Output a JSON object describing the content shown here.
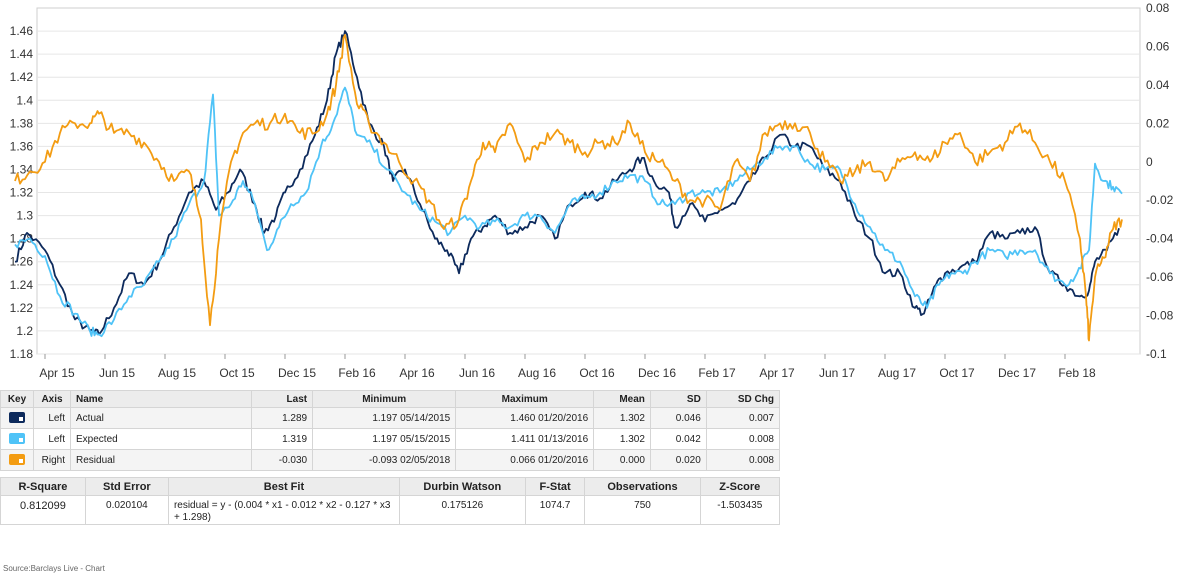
{
  "chart_data": {
    "type": "line",
    "x_ticks": [
      "Apr 15",
      "Jun 15",
      "Aug 15",
      "Oct 15",
      "Dec 15",
      "Feb 16",
      "Apr 16",
      "Jun 16",
      "Aug 16",
      "Oct 16",
      "Dec 16",
      "Feb 17",
      "Apr 17",
      "Jun 17",
      "Aug 17",
      "Oct 17",
      "Dec 17",
      "Feb 18"
    ],
    "y_left": {
      "ylim": [
        1.18,
        1.48
      ],
      "ticks": [
        "1.18",
        "1.2",
        "1.22",
        "1.24",
        "1.26",
        "1.28",
        "1.3",
        "1.32",
        "1.34",
        "1.36",
        "1.38",
        "1.4",
        "1.42",
        "1.44",
        "1.46"
      ]
    },
    "y_right": {
      "ylim": [
        -0.1,
        0.08
      ],
      "ticks": [
        "-0.1",
        "-0.08",
        "-0.06",
        "-0.04",
        "-0.02",
        "0",
        "0.02",
        "0.04",
        "0.06",
        "0.08"
      ]
    },
    "x_start_month": "2015-03",
    "series": [
      {
        "name": "Actual",
        "axis": "left",
        "color": "#0d2a5c",
        "points": [
          [
            0.0,
            1.26
          ],
          [
            0.4,
            1.285
          ],
          [
            1.0,
            1.27
          ],
          [
            1.5,
            1.24
          ],
          [
            2.0,
            1.21
          ],
          [
            2.5,
            1.2
          ],
          [
            2.8,
            1.197
          ],
          [
            3.3,
            1.22
          ],
          [
            3.8,
            1.25
          ],
          [
            4.3,
            1.24
          ],
          [
            4.8,
            1.26
          ],
          [
            5.3,
            1.29
          ],
          [
            5.8,
            1.32
          ],
          [
            6.3,
            1.33
          ],
          [
            6.7,
            1.305
          ],
          [
            7.1,
            1.32
          ],
          [
            7.5,
            1.34
          ],
          [
            8.0,
            1.31
          ],
          [
            8.3,
            1.285
          ],
          [
            8.7,
            1.3
          ],
          [
            9.0,
            1.32
          ],
          [
            9.5,
            1.34
          ],
          [
            10.0,
            1.37
          ],
          [
            10.4,
            1.4
          ],
          [
            10.7,
            1.44
          ],
          [
            11.0,
            1.46
          ],
          [
            11.4,
            1.42
          ],
          [
            11.8,
            1.38
          ],
          [
            12.3,
            1.36
          ],
          [
            12.6,
            1.33
          ],
          [
            13.0,
            1.34
          ],
          [
            13.5,
            1.31
          ],
          [
            14.0,
            1.28
          ],
          [
            14.4,
            1.27
          ],
          [
            14.8,
            1.25
          ],
          [
            15.2,
            1.28
          ],
          [
            15.6,
            1.29
          ],
          [
            16.0,
            1.3
          ],
          [
            16.5,
            1.285
          ],
          [
            17.0,
            1.29
          ],
          [
            17.5,
            1.3
          ],
          [
            18.0,
            1.28
          ],
          [
            18.5,
            1.31
          ],
          [
            19.0,
            1.32
          ],
          [
            19.5,
            1.315
          ],
          [
            20.0,
            1.33
          ],
          [
            20.5,
            1.34
          ],
          [
            20.9,
            1.35
          ],
          [
            21.3,
            1.33
          ],
          [
            21.8,
            1.32
          ],
          [
            22.0,
            1.29
          ],
          [
            22.5,
            1.31
          ],
          [
            23.0,
            1.295
          ],
          [
            23.5,
            1.305
          ],
          [
            24.0,
            1.31
          ],
          [
            24.5,
            1.33
          ],
          [
            25.0,
            1.35
          ],
          [
            25.5,
            1.37
          ],
          [
            26.0,
            1.36
          ],
          [
            26.5,
            1.36
          ],
          [
            27.0,
            1.34
          ],
          [
            27.5,
            1.33
          ],
          [
            28.0,
            1.3
          ],
          [
            28.5,
            1.28
          ],
          [
            29.0,
            1.25
          ],
          [
            29.5,
            1.25
          ],
          [
            30.0,
            1.22
          ],
          [
            30.3,
            1.215
          ],
          [
            30.7,
            1.24
          ],
          [
            31.0,
            1.25
          ],
          [
            31.5,
            1.255
          ],
          [
            32.0,
            1.26
          ],
          [
            32.5,
            1.285
          ],
          [
            33.0,
            1.28
          ],
          [
            33.5,
            1.285
          ],
          [
            34.0,
            1.29
          ],
          [
            34.5,
            1.25
          ],
          [
            35.0,
            1.24
          ],
          [
            35.5,
            1.23
          ],
          [
            35.8,
            1.235
          ],
          [
            36.0,
            1.26
          ],
          [
            36.4,
            1.27
          ],
          [
            36.8,
            1.289
          ]
        ]
      },
      {
        "name": "Expected",
        "axis": "left",
        "color": "#4fc3f7",
        "points": [
          [
            0.0,
            1.275
          ],
          [
            0.5,
            1.28
          ],
          [
            1.0,
            1.265
          ],
          [
            1.5,
            1.23
          ],
          [
            2.0,
            1.215
          ],
          [
            2.5,
            1.2
          ],
          [
            2.8,
            1.197
          ],
          [
            3.3,
            1.21
          ],
          [
            3.8,
            1.23
          ],
          [
            4.3,
            1.24
          ],
          [
            4.8,
            1.26
          ],
          [
            5.3,
            1.28
          ],
          [
            5.8,
            1.31
          ],
          [
            6.3,
            1.33
          ],
          [
            6.6,
            1.405
          ],
          [
            6.8,
            1.3
          ],
          [
            7.2,
            1.31
          ],
          [
            7.6,
            1.33
          ],
          [
            8.0,
            1.31
          ],
          [
            8.4,
            1.27
          ],
          [
            8.8,
            1.29
          ],
          [
            9.2,
            1.31
          ],
          [
            9.7,
            1.32
          ],
          [
            10.2,
            1.36
          ],
          [
            10.6,
            1.38
          ],
          [
            11.0,
            1.411
          ],
          [
            11.4,
            1.37
          ],
          [
            11.9,
            1.36
          ],
          [
            12.4,
            1.34
          ],
          [
            13.0,
            1.32
          ],
          [
            13.5,
            1.305
          ],
          [
            14.0,
            1.295
          ],
          [
            14.5,
            1.285
          ],
          [
            15.0,
            1.3
          ],
          [
            15.5,
            1.29
          ],
          [
            16.0,
            1.295
          ],
          [
            16.5,
            1.29
          ],
          [
            17.0,
            1.3
          ],
          [
            17.5,
            1.3
          ],
          [
            18.0,
            1.285
          ],
          [
            18.5,
            1.31
          ],
          [
            19.0,
            1.315
          ],
          [
            19.5,
            1.32
          ],
          [
            20.0,
            1.33
          ],
          [
            20.5,
            1.335
          ],
          [
            21.0,
            1.33
          ],
          [
            21.5,
            1.31
          ],
          [
            22.0,
            1.31
          ],
          [
            22.5,
            1.32
          ],
          [
            23.0,
            1.32
          ],
          [
            23.5,
            1.32
          ],
          [
            24.0,
            1.33
          ],
          [
            24.5,
            1.34
          ],
          [
            25.0,
            1.35
          ],
          [
            25.5,
            1.36
          ],
          [
            26.0,
            1.36
          ],
          [
            26.5,
            1.345
          ],
          [
            27.0,
            1.34
          ],
          [
            27.5,
            1.34
          ],
          [
            28.0,
            1.31
          ],
          [
            28.5,
            1.29
          ],
          [
            29.0,
            1.27
          ],
          [
            29.5,
            1.26
          ],
          [
            30.0,
            1.23
          ],
          [
            30.4,
            1.22
          ],
          [
            30.8,
            1.24
          ],
          [
            31.2,
            1.25
          ],
          [
            31.6,
            1.25
          ],
          [
            32.0,
            1.26
          ],
          [
            32.5,
            1.27
          ],
          [
            33.0,
            1.265
          ],
          [
            33.5,
            1.27
          ],
          [
            34.0,
            1.27
          ],
          [
            34.5,
            1.25
          ],
          [
            35.0,
            1.24
          ],
          [
            35.4,
            1.25
          ],
          [
            35.8,
            1.27
          ],
          [
            36.0,
            1.345
          ],
          [
            36.3,
            1.33
          ],
          [
            36.6,
            1.325
          ],
          [
            36.9,
            1.319
          ]
        ]
      },
      {
        "name": "Residual",
        "axis": "right",
        "color": "#f39c12",
        "points": [
          [
            0.0,
            -0.01
          ],
          [
            0.5,
            -0.005
          ],
          [
            1.0,
            0.0
          ],
          [
            1.5,
            0.015
          ],
          [
            2.0,
            0.02
          ],
          [
            2.5,
            0.02
          ],
          [
            2.8,
            0.025
          ],
          [
            3.3,
            0.015
          ],
          [
            3.8,
            0.015
          ],
          [
            4.3,
            0.01
          ],
          [
            4.8,
            0.0
          ],
          [
            5.3,
            -0.01
          ],
          [
            5.8,
            -0.005
          ],
          [
            6.2,
            -0.03
          ],
          [
            6.5,
            -0.085
          ],
          [
            6.8,
            -0.04
          ],
          [
            7.2,
            0.0
          ],
          [
            7.6,
            0.015
          ],
          [
            8.0,
            0.02
          ],
          [
            8.5,
            0.02
          ],
          [
            9.0,
            0.025
          ],
          [
            9.5,
            0.015
          ],
          [
            10.0,
            0.015
          ],
          [
            10.4,
            0.025
          ],
          [
            10.7,
            0.04
          ],
          [
            11.0,
            0.066
          ],
          [
            11.4,
            0.03
          ],
          [
            11.8,
            0.02
          ],
          [
            12.3,
            0.01
          ],
          [
            12.8,
            0.0
          ],
          [
            13.3,
            -0.01
          ],
          [
            13.8,
            -0.02
          ],
          [
            14.3,
            -0.035
          ],
          [
            14.8,
            -0.03
          ],
          [
            15.2,
            -0.01
          ],
          [
            15.6,
            0.01
          ],
          [
            16.0,
            0.005
          ],
          [
            16.5,
            0.02
          ],
          [
            17.0,
            0.0
          ],
          [
            17.5,
            0.01
          ],
          [
            18.0,
            0.015
          ],
          [
            18.5,
            0.01
          ],
          [
            19.0,
            0.005
          ],
          [
            19.5,
            0.01
          ],
          [
            20.0,
            0.01
          ],
          [
            20.5,
            0.02
          ],
          [
            21.0,
            0.005
          ],
          [
            21.5,
            0.0
          ],
          [
            22.0,
            -0.01
          ],
          [
            22.5,
            -0.02
          ],
          [
            23.0,
            -0.02
          ],
          [
            23.5,
            -0.025
          ],
          [
            24.0,
            0.0
          ],
          [
            24.5,
            -0.01
          ],
          [
            25.0,
            0.015
          ],
          [
            25.5,
            0.02
          ],
          [
            26.0,
            0.02
          ],
          [
            26.5,
            0.015
          ],
          [
            27.0,
            0.0
          ],
          [
            27.5,
            -0.01
          ],
          [
            28.0,
            -0.005
          ],
          [
            28.5,
            0.0
          ],
          [
            29.0,
            -0.01
          ],
          [
            29.5,
            0.0
          ],
          [
            30.0,
            0.005
          ],
          [
            30.5,
            0.0
          ],
          [
            31.0,
            0.01
          ],
          [
            31.5,
            0.015
          ],
          [
            32.0,
            0.0
          ],
          [
            32.5,
            0.005
          ],
          [
            33.0,
            0.01
          ],
          [
            33.5,
            0.02
          ],
          [
            34.0,
            0.01
          ],
          [
            34.5,
            0.0
          ],
          [
            35.0,
            -0.01
          ],
          [
            35.5,
            -0.04
          ],
          [
            35.7,
            -0.07
          ],
          [
            35.8,
            -0.093
          ],
          [
            36.0,
            -0.06
          ],
          [
            36.3,
            -0.05
          ],
          [
            36.6,
            -0.035
          ],
          [
            36.9,
            -0.03
          ]
        ]
      }
    ]
  },
  "stats_table": {
    "headers": [
      "Key",
      "Axis",
      "Name",
      "Last",
      "Minimum",
      "Maximum",
      "Mean",
      "SD",
      "SD Chg"
    ],
    "rows": [
      {
        "axis": "Left",
        "name": "Actual",
        "color": "#0d2a5c",
        "last": "1.289",
        "minimum": "1.197 05/14/2015",
        "maximum": "1.460 01/20/2016",
        "mean": "1.302",
        "sd": "0.046",
        "sd_chg": "0.007"
      },
      {
        "axis": "Left",
        "name": "Expected",
        "color": "#4fc3f7",
        "last": "1.319",
        "minimum": "1.197 05/15/2015",
        "maximum": "1.411 01/13/2016",
        "mean": "1.302",
        "sd": "0.042",
        "sd_chg": "0.008"
      },
      {
        "axis": "Right",
        "name": "Residual",
        "color": "#f39c12",
        "last": "-0.030",
        "minimum": "-0.093 02/05/2018",
        "maximum": "0.066 01/20/2016",
        "mean": "0.000",
        "sd": "0.020",
        "sd_chg": "0.008"
      }
    ]
  },
  "fit_table": {
    "headers": [
      "R-Square",
      "Std Error",
      "Best Fit",
      "Durbin Watson",
      "F-Stat",
      "Observations",
      "Z-Score"
    ],
    "values": [
      "0.812099",
      "0.020104",
      "residual = y - (0.004 * x1 - 0.012 * x2 - 0.127 * x3 + 1.298)",
      "0.175126",
      "1074.7",
      "750",
      "-1.503435"
    ]
  },
  "source": "Source:Barclays Live - Chart"
}
